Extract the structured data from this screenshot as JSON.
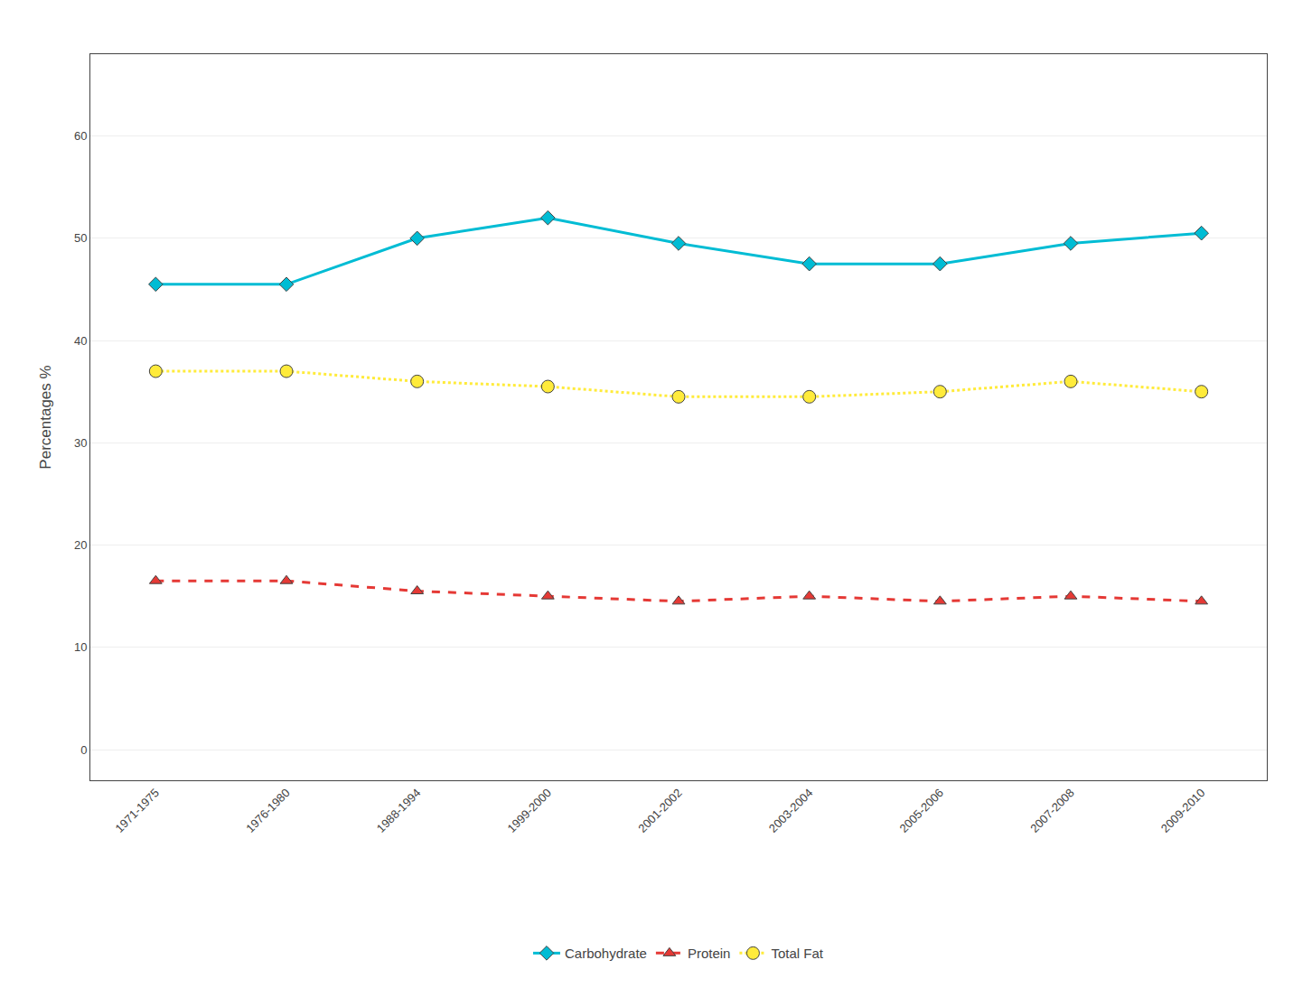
{
  "chart_data": {
    "type": "line",
    "categories": [
      "1971-1975",
      "1976-1980",
      "1988-1994",
      "1999-2000",
      "2001-2002",
      "2003-2004",
      "2005-2006",
      "2007-2008",
      "2009-2010"
    ],
    "series": [
      {
        "name": "Carbohydrate",
        "color": "#00BCD4",
        "marker": "diamond",
        "line_style": "solid",
        "values": [
          45.5,
          45.5,
          50.0,
          52.0,
          49.5,
          47.5,
          47.5,
          49.5,
          50.5
        ]
      },
      {
        "name": "Protein",
        "color": "#E53935",
        "marker": "triangle-up",
        "line_style": "dash",
        "values": [
          16.5,
          16.5,
          15.5,
          15.0,
          14.5,
          15.0,
          14.5,
          15.0,
          14.5
        ]
      },
      {
        "name": "Total Fat",
        "color": "#FFEB3B",
        "marker": "circle",
        "line_style": "dot",
        "values": [
          37.0,
          37.0,
          36.0,
          35.5,
          34.5,
          34.5,
          35.0,
          36.0,
          35.0
        ]
      }
    ],
    "ylabel": "Percentages %",
    "ylim": [
      -3,
      68
    ],
    "yticks": [
      0,
      10,
      20,
      30,
      40,
      50,
      60
    ],
    "grid": true,
    "legend": "bottom"
  }
}
